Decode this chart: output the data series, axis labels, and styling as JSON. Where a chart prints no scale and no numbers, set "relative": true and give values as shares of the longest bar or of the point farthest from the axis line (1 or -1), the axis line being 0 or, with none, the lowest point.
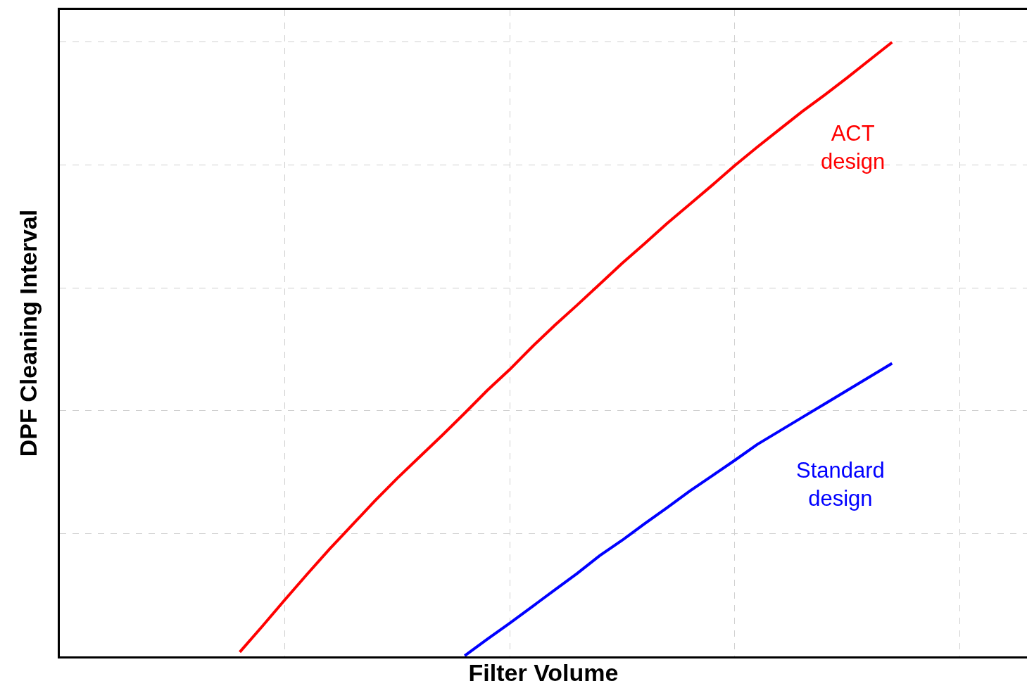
{
  "chart_data": {
    "type": "line",
    "relative": true,
    "xlabel": "Filter Volume",
    "ylabel": "DPF Cleaning Interval",
    "grid": true,
    "legend": false,
    "marker": "none",
    "line_style": "solid",
    "categories": [
      null,
      null,
      null,
      null,
      null,
      null,
      null,
      null,
      null,
      null,
      null,
      null,
      null,
      null,
      null,
      null,
      null,
      null,
      null,
      null,
      null,
      null,
      null,
      null,
      null,
      null,
      null,
      null,
      null,
      null,
      null,
      null,
      null,
      null,
      null,
      null,
      null,
      null,
      null,
      null,
      null,
      null,
      null,
      null
    ],
    "series": [
      {
        "name": "ACT design",
        "color": "#ff0000",
        "values": [
          null,
          null,
          null,
          null,
          null,
          null,
          null,
          null,
          0.007,
          0.049,
          0.092,
          0.134,
          0.175,
          0.214,
          0.253,
          0.29,
          0.325,
          0.36,
          0.396,
          0.433,
          0.467,
          0.504,
          0.539,
          0.572,
          0.606,
          0.64,
          0.672,
          0.705,
          0.736,
          0.767,
          0.799,
          0.829,
          0.858,
          0.887,
          0.914,
          0.942,
          0.971,
          1,
          null,
          null,
          null,
          null,
          null,
          null
        ]
      },
      {
        "name": "Standard design",
        "color": "#0000ff",
        "values": [
          null,
          null,
          null,
          null,
          null,
          null,
          null,
          null,
          null,
          null,
          null,
          null,
          null,
          null,
          null,
          null,
          null,
          null,
          0.001,
          0.028,
          0.054,
          0.081,
          0.108,
          0.135,
          0.164,
          0.189,
          0.216,
          0.242,
          0.269,
          0.294,
          0.319,
          0.345,
          0.367,
          0.389,
          0.411,
          0.433,
          0.455,
          0.477,
          null,
          null,
          null,
          null,
          null,
          null
        ]
      }
    ]
  }
}
